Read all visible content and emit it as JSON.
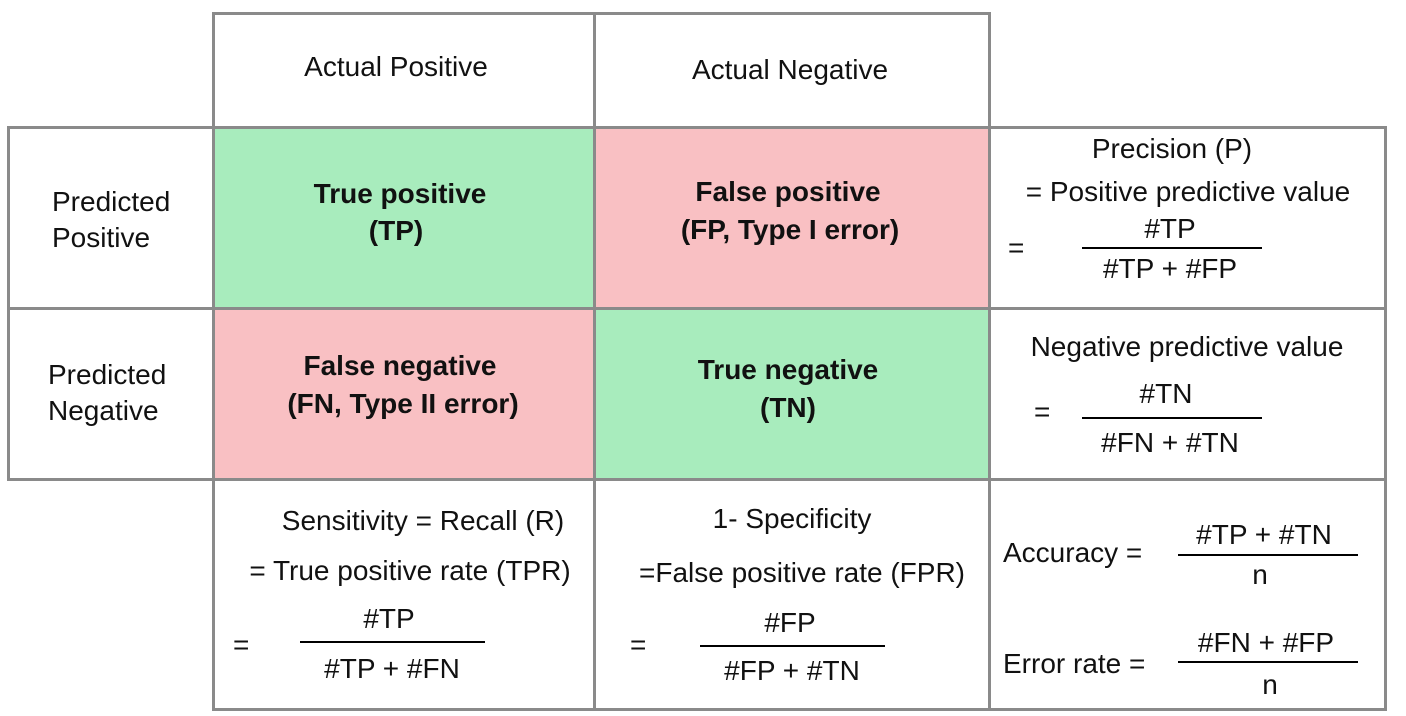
{
  "headers": {
    "actual_positive": "Actual Positive",
    "actual_negative": "Actual Negative",
    "predicted_positive": [
      "Predicted",
      "Positive"
    ],
    "predicted_negative": [
      "Predicted",
      "Negative"
    ]
  },
  "cells": {
    "tp": [
      "True positive",
      "(TP)"
    ],
    "fp": [
      "False positive",
      "(FP, Type I error)"
    ],
    "fn": [
      "False negative",
      "(FN, Type II error)"
    ],
    "tn": [
      "True negative",
      "(TN)"
    ]
  },
  "colors": {
    "correct": "#a8ecbd",
    "error": "#f9c0c3",
    "border": "#8a8a8a"
  },
  "metrics": {
    "precision": {
      "line1": "Precision (P)",
      "line2": "= Positive predictive value",
      "eq": "=",
      "num": "#TP",
      "den": "#TP + #FP"
    },
    "npv": {
      "line1": "Negative predictive value",
      "eq": "=",
      "num": "#TN",
      "den": "#FN + #TN"
    },
    "sensitivity": {
      "line1": "Sensitivity = Recall (R)",
      "line2": "= True positive rate (TPR)",
      "eq": "=",
      "num": "#TP",
      "den": "#TP + #FN"
    },
    "fpr": {
      "line1": "1- Specificity",
      "line2": "=False positive rate (FPR)",
      "eq": "=",
      "num": "#FP",
      "den": "#FP + #TN"
    },
    "accuracy": {
      "label": "Accuracy =",
      "num": "#TP + #TN",
      "den": "n"
    },
    "error_rate": {
      "label": "Error rate =",
      "num": "#FN + #FP",
      "den": "n"
    }
  }
}
